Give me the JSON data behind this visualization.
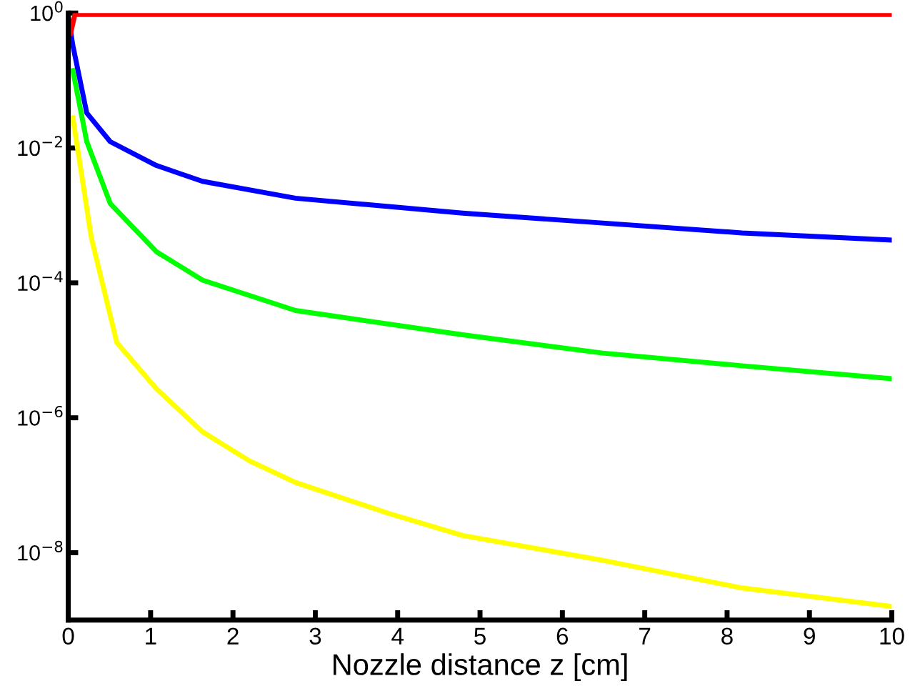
{
  "chart_data": {
    "type": "line",
    "xlabel": "Nozzle distance z [cm]",
    "log": "y",
    "xlim": [
      0,
      10
    ],
    "ylim": [
      1e-09,
      1
    ],
    "xticks": [
      0,
      1,
      2,
      3,
      4,
      5,
      6,
      7,
      8,
      9,
      10
    ],
    "yticks": [
      {
        "value": 1,
        "label": "10$^{0}$"
      },
      {
        "value": 0.01,
        "label": "10$^{−2}$"
      },
      {
        "value": 0.0001,
        "label": "10$^{−4}$"
      },
      {
        "value": 1e-06,
        "label": "10$^{−6}$"
      },
      {
        "value": 1e-08,
        "label": "10$^{−8}$"
      }
    ],
    "grid": false,
    "legend": false,
    "line_style": "solid",
    "series": [
      {
        "color": "#ffff00",
        "x": [
          0.056,
          0.28,
          0.59,
          1.07,
          1.63,
          2.2,
          2.76,
          3.9,
          4.79,
          6.49,
          8.18,
          10
        ],
        "values": [
          0.028,
          0.00047,
          1.3e-05,
          2.7e-06,
          6.2e-07,
          2.3e-07,
          1.1e-07,
          3.8e-08,
          1.8e-08,
          7.7e-09,
          3e-09,
          1.6e-09
        ]
      },
      {
        "color": "#00ff00",
        "x": [
          0.056,
          0.225,
          0.51,
          1.07,
          1.63,
          2.76,
          4.79,
          6.49,
          8.18,
          10
        ],
        "values": [
          0.14,
          0.0124,
          0.0015,
          0.00029,
          0.00011,
          3.9e-05,
          1.7e-05,
          9.1e-06,
          5.9e-06,
          3.8e-06
        ]
      },
      {
        "color": "#0000ff",
        "x": [
          0,
          0.056,
          0.225,
          0.51,
          1.07,
          1.63,
          2.76,
          4.79,
          6.49,
          8.18,
          10
        ],
        "values": [
          0.9,
          0.33,
          0.033,
          0.0124,
          0.0055,
          0.0032,
          0.0018,
          0.00108,
          0.00077,
          0.00055,
          0.00043
        ]
      },
      {
        "color": "#ff0000",
        "x": [
          0.03,
          0.08,
          10
        ],
        "values": [
          0.5,
          0.95,
          0.95
        ]
      }
    ]
  }
}
